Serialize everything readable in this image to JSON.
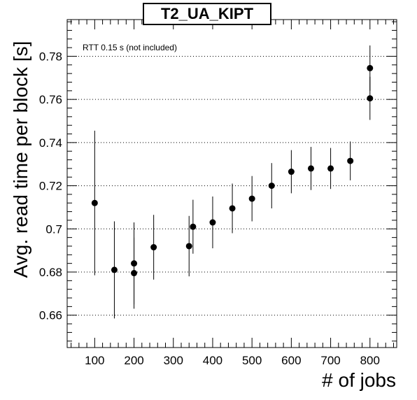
{
  "chart_data": {
    "type": "scatter",
    "title": "T2_UA_KIPT",
    "xlabel": "# of jobs",
    "ylabel": "Avg. read time per block [s]",
    "annotation": "RTT 0.15 s (not included)",
    "xlim": [
      30,
      868
    ],
    "ylim": [
      0.645,
      0.797
    ],
    "x_ticks": [
      100,
      200,
      300,
      400,
      500,
      600,
      700,
      800
    ],
    "y_ticks": [
      0.66,
      0.68,
      0.7,
      0.72,
      0.74,
      0.76,
      0.78
    ],
    "y_tick_labels": [
      "0.66",
      "0.68",
      "0.7",
      "0.72",
      "0.74",
      "0.76",
      "0.78"
    ],
    "grid": {
      "horizontal": true,
      "vertical": false,
      "style": "dotted"
    },
    "error_bars": true,
    "points": [
      {
        "x": 100,
        "y": 0.712,
        "err": 0.0335
      },
      {
        "x": 150,
        "y": 0.681,
        "err": 0.0225
      },
      {
        "x": 200,
        "y": 0.684,
        "err": 0.019
      },
      {
        "x": 200,
        "y": 0.6795,
        "err": 0.0165
      },
      {
        "x": 250,
        "y": 0.6915,
        "err": 0.015
      },
      {
        "x": 340,
        "y": 0.692,
        "err": 0.014
      },
      {
        "x": 350,
        "y": 0.701,
        "err": 0.0125
      },
      {
        "x": 400,
        "y": 0.703,
        "err": 0.012
      },
      {
        "x": 450,
        "y": 0.7095,
        "err": 0.0115
      },
      {
        "x": 500,
        "y": 0.714,
        "err": 0.0105
      },
      {
        "x": 550,
        "y": 0.72,
        "err": 0.0105
      },
      {
        "x": 600,
        "y": 0.7265,
        "err": 0.01
      },
      {
        "x": 650,
        "y": 0.728,
        "err": 0.01
      },
      {
        "x": 700,
        "y": 0.728,
        "err": 0.0095
      },
      {
        "x": 750,
        "y": 0.7315,
        "err": 0.009
      },
      {
        "x": 800,
        "y": 0.7745,
        "err": 0.0105
      },
      {
        "x": 800,
        "y": 0.7605,
        "err": 0.01
      }
    ],
    "marker_color": "#000000"
  }
}
